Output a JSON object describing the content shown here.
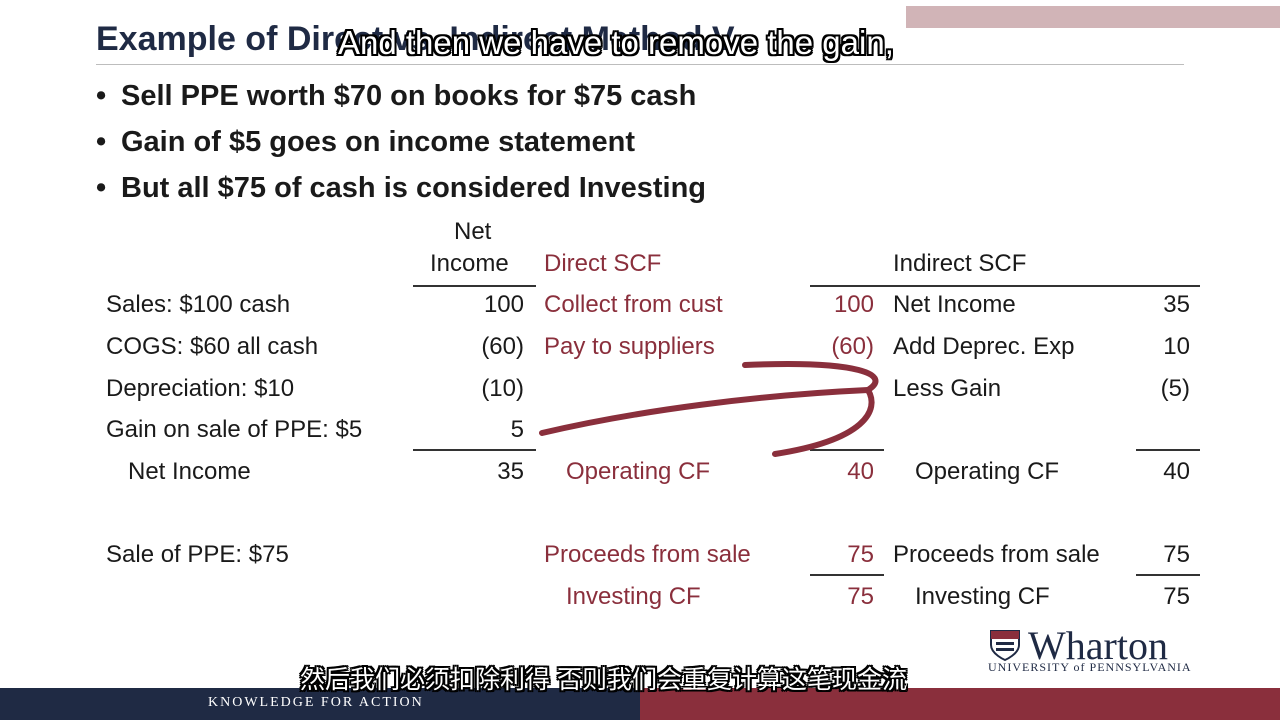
{
  "slide": {
    "title": "Example of Direct vs. Indirect Method V",
    "caption_en": "And then we have to remove the gain,",
    "caption_zh": "然后我们必须扣除利得 否则我们会重复计算这笔现金流",
    "bullets": [
      "Sell PPE worth $70 on books for $75 cash",
      "Gain of $5 goes on income statement",
      "But all $75 of cash is considered Investing"
    ],
    "bullet_glyph": "•"
  },
  "table": {
    "headers": {
      "net_income_line1": "Net",
      "net_income_line2": "Income",
      "direct": "Direct SCF",
      "indirect": "Indirect SCF"
    },
    "rows": [
      {
        "label": "Sales: $100 cash",
        "ni": "100",
        "direct_label": "Collect from cust",
        "direct_value": "100",
        "indirect_label": "Net Income",
        "indirect_value": "35"
      },
      {
        "label": "COGS: $60 all cash",
        "ni": "(60)",
        "direct_label": "Pay to suppliers",
        "direct_value": "(60)",
        "indirect_label": "Add Deprec. Exp",
        "indirect_value": "10"
      },
      {
        "label": "Depreciation: $10",
        "ni": "(10)",
        "direct_label": "",
        "direct_value": "",
        "indirect_label": "Less Gain",
        "indirect_value": "(5)"
      },
      {
        "label": "Gain on sale of PPE: $5",
        "ni": "5",
        "direct_label": "",
        "direct_value": "",
        "indirect_label": "",
        "indirect_value": ""
      }
    ],
    "totals": {
      "ni_label": "Net Income",
      "ni_value": "35",
      "direct_label": "Operating CF",
      "direct_value": "40",
      "indirect_label": "Operating CF",
      "indirect_value": "40"
    },
    "investing": {
      "label": "Sale of PPE: $75",
      "direct_label": "Proceeds from sale",
      "direct_value": "75",
      "indirect_label": "Proceeds from sale",
      "indirect_value": "75",
      "direct_total_label": "Investing CF",
      "direct_total_value": "75",
      "indirect_total_label": "Investing CF",
      "indirect_total_value": "75"
    }
  },
  "branding": {
    "logo_word": "Wharton",
    "logo_sub": "UNIVERSITY of PENNSYLVANIA",
    "footer": "KNOWLEDGE FOR ACTION"
  },
  "colors": {
    "navy": "#1f2a44",
    "maroon": "#8a2f3c",
    "arrow": "#8a2f3c"
  },
  "icons": {
    "logo": "wharton-shield-icon",
    "annotation": "hand-drawn-arrow-icon"
  }
}
